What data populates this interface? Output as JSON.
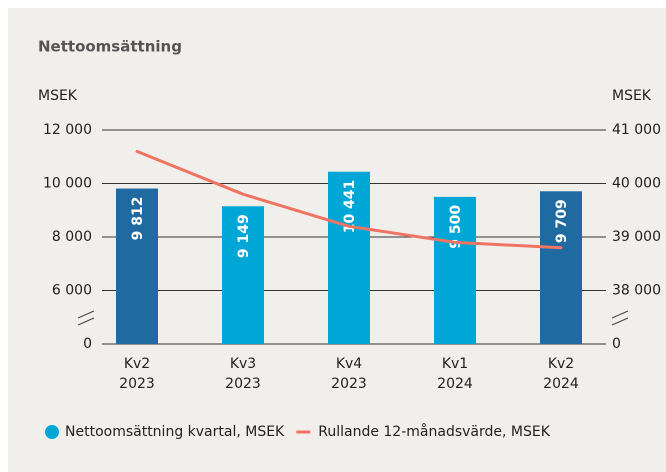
{
  "chart_data": {
    "type": "bar_line",
    "title": "Nettoomsättning",
    "ylabel": "MSEK",
    "y2label": "MSEK",
    "categories": [
      "Kv2\n2023",
      "Kv3\n2023",
      "Kv4\n2023",
      "Kv1\n2024",
      "Kv2\n2024"
    ],
    "series": [
      {
        "name": "Nettoomsättning kvartal, MSEK",
        "type": "bar",
        "color": "#00a6d6",
        "colors": [
          "#1f6aa0",
          "#00a6d6",
          "#00a6d6",
          "#00a6d6",
          "#1f6aa0"
        ],
        "values": [
          9812,
          9149,
          10441,
          9500,
          9709
        ],
        "value_labels": [
          "9 812",
          "9 149",
          "10 441",
          "9 500",
          "9 709"
        ]
      },
      {
        "name": "Rullande 12-månadsvärde, MSEK",
        "type": "line",
        "axis": "y2",
        "color": "#f07462",
        "values": [
          40600,
          39800,
          39200,
          38900,
          38800
        ]
      }
    ],
    "ylim": [
      4000,
      12000
    ],
    "yticks": [
      {
        "value": 0,
        "label": "0"
      },
      {
        "value": 6000,
        "label": "6 000"
      },
      {
        "value": 8000,
        "label": "8 000"
      },
      {
        "value": 10000,
        "label": "10 000"
      },
      {
        "value": 12000,
        "label": "12 000"
      }
    ],
    "y2lim": [
      37000,
      41000
    ],
    "y2ticks": [
      {
        "value": 0,
        "label": "0"
      },
      {
        "value": 38000,
        "label": "38 000"
      },
      {
        "value": 39000,
        "label": "39 000"
      },
      {
        "value": 40000,
        "label": "40 000"
      },
      {
        "value": 41000,
        "label": "41 000"
      }
    ],
    "axis_break": true,
    "grid": true
  }
}
